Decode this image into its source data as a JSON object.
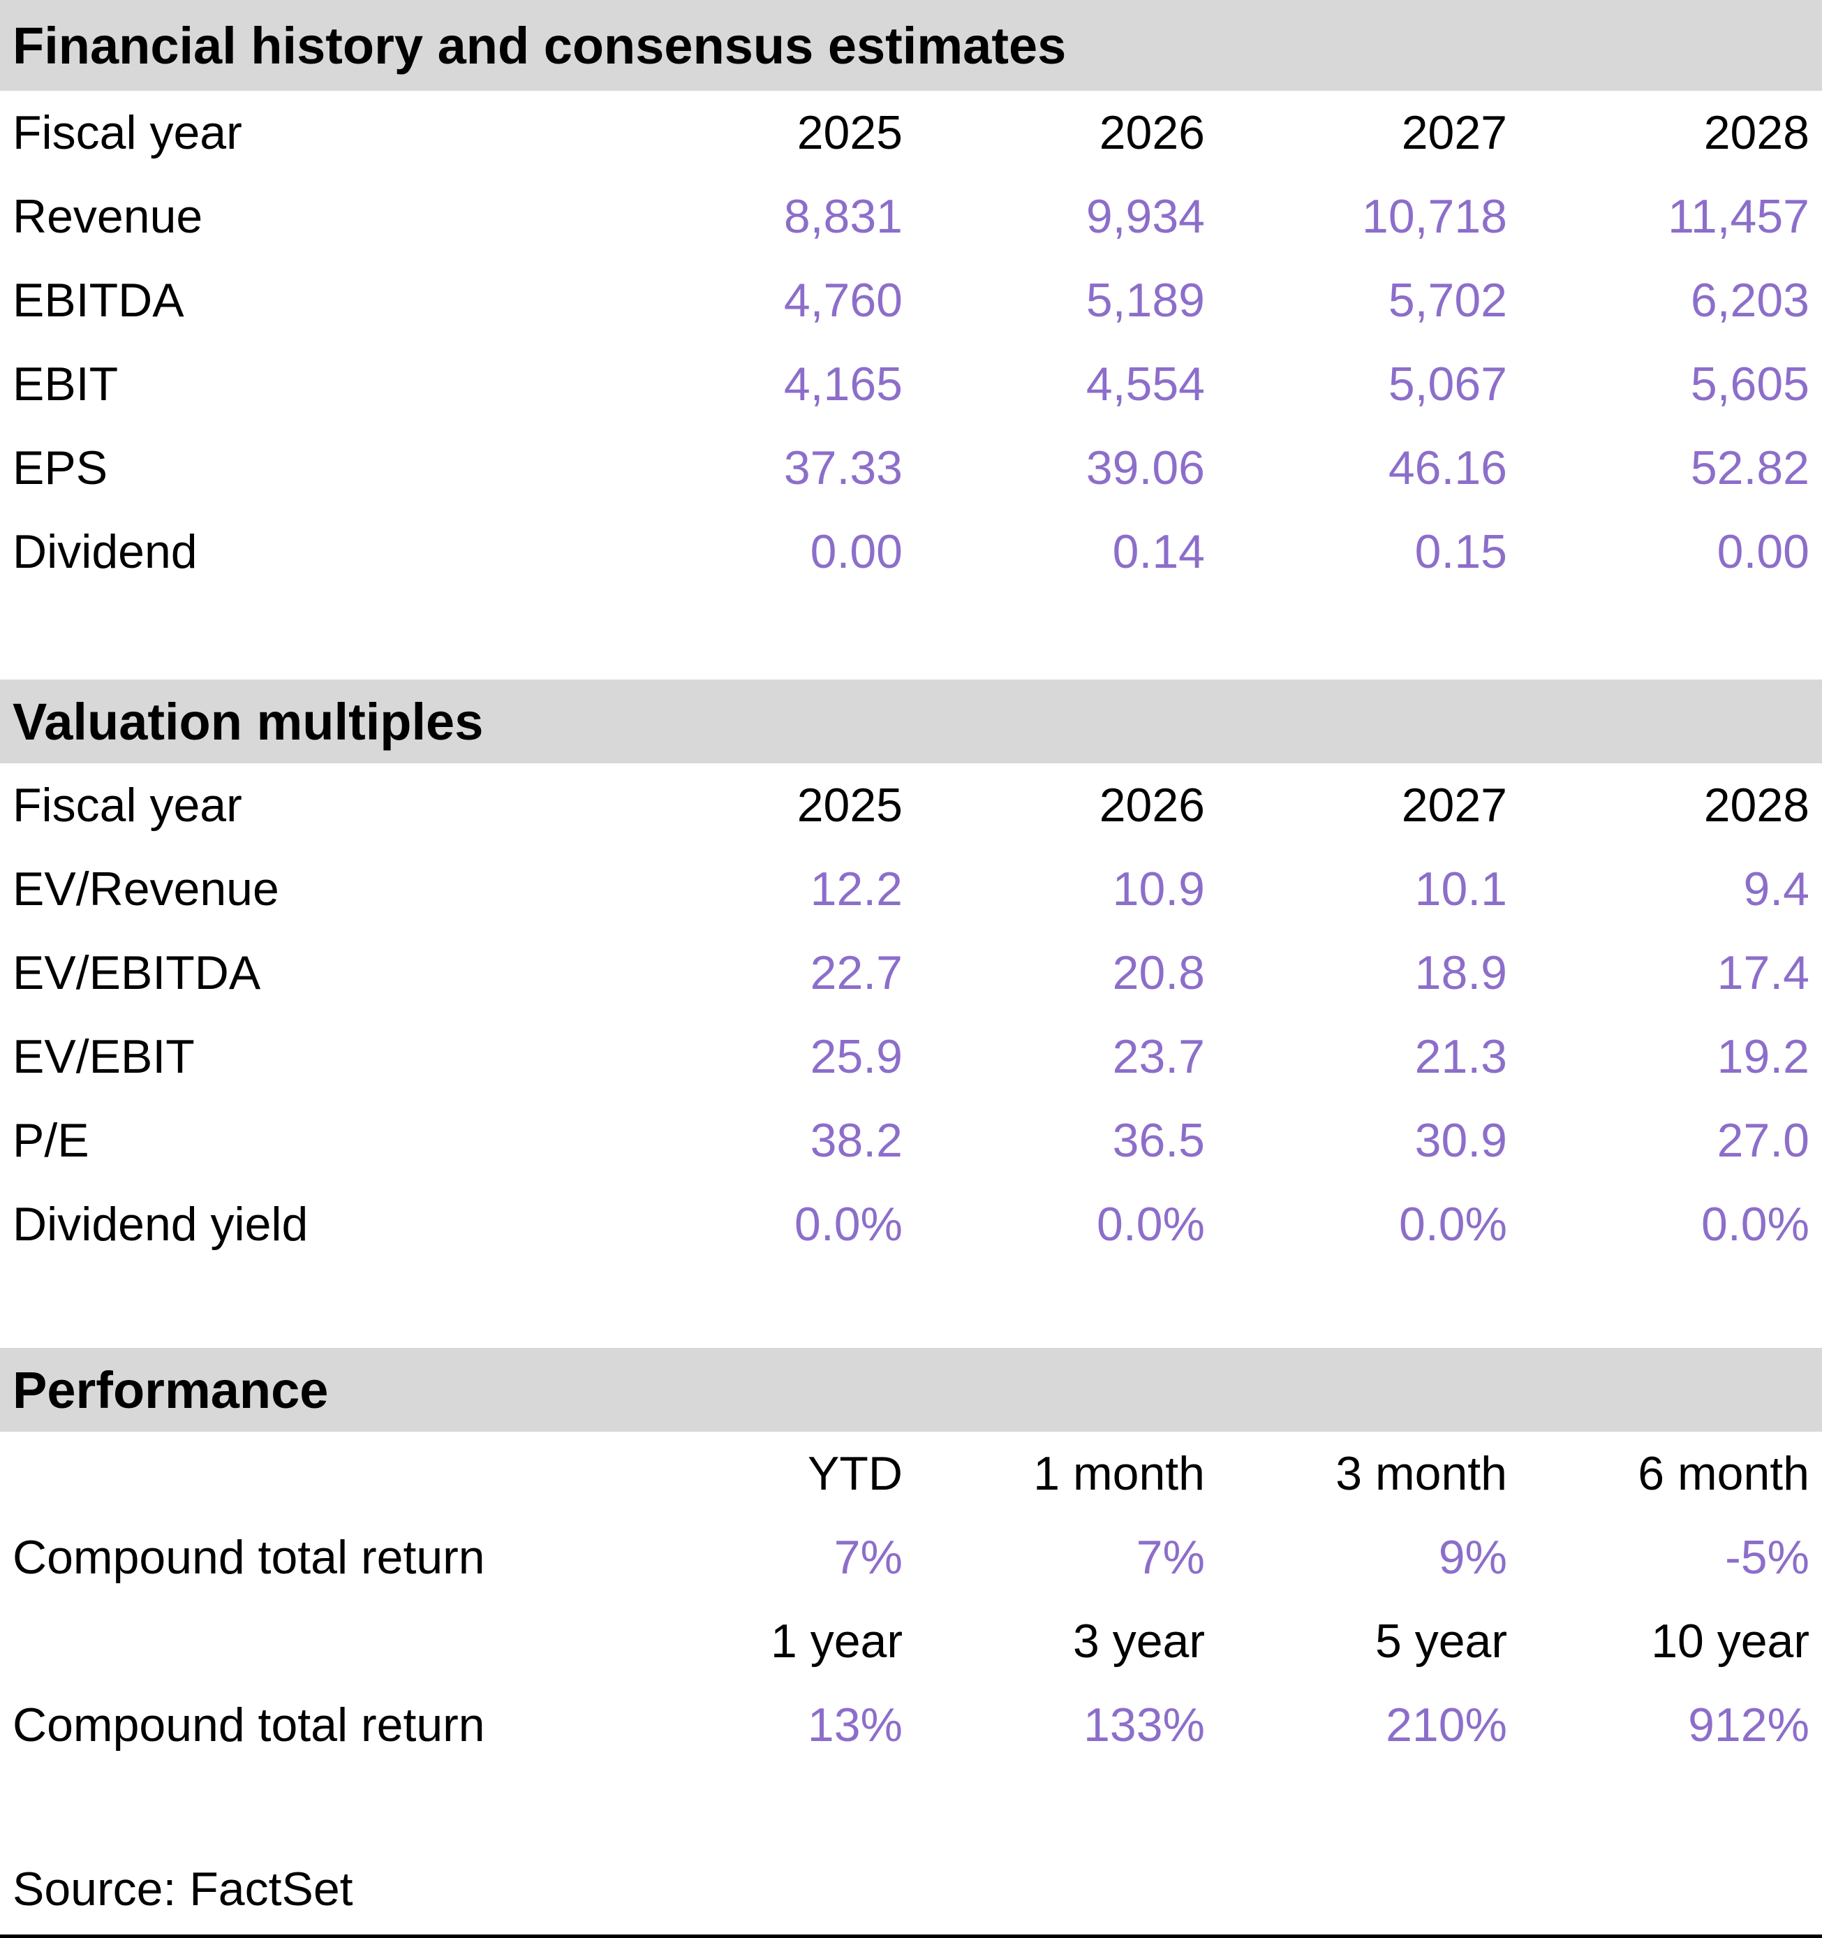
{
  "colors": {
    "accent_purple": "#8c6eca",
    "section_header_bg": "#d8d8d8",
    "text": "#000000"
  },
  "sections": {
    "financial": {
      "title": "Financial history and consensus estimates",
      "header_label": "Fiscal year",
      "years": [
        "2025",
        "2026",
        "2027",
        "2028"
      ],
      "rows": [
        {
          "label": "Revenue",
          "values": [
            "8,831",
            "9,934",
            "10,718",
            "11,457"
          ]
        },
        {
          "label": "EBITDA",
          "values": [
            "4,760",
            "5,189",
            "5,702",
            "6,203"
          ]
        },
        {
          "label": "EBIT",
          "values": [
            "4,165",
            "4,554",
            "5,067",
            "5,605"
          ]
        },
        {
          "label": "EPS",
          "values": [
            "37.33",
            "39.06",
            "46.16",
            "52.82"
          ]
        },
        {
          "label": "Dividend",
          "values": [
            "0.00",
            "0.14",
            "0.15",
            "0.00"
          ]
        }
      ]
    },
    "valuation": {
      "title": "Valuation multiples",
      "header_label": "Fiscal year",
      "years": [
        "2025",
        "2026",
        "2027",
        "2028"
      ],
      "rows": [
        {
          "label": "EV/Revenue",
          "values": [
            "12.2",
            "10.9",
            "10.1",
            "9.4"
          ]
        },
        {
          "label": "EV/EBITDA",
          "values": [
            "22.7",
            "20.8",
            "18.9",
            "17.4"
          ]
        },
        {
          "label": "EV/EBIT",
          "values": [
            "25.9",
            "23.7",
            "21.3",
            "19.2"
          ]
        },
        {
          "label": "P/E",
          "values": [
            "38.2",
            "36.5",
            "30.9",
            "27.0"
          ]
        },
        {
          "label": "Dividend yield",
          "values": [
            "0.0%",
            "0.0%",
            "0.0%",
            "0.0%"
          ]
        }
      ]
    },
    "performance": {
      "title": "Performance",
      "blocks": [
        {
          "periods": [
            "YTD",
            "1 month",
            "3 month",
            "6 month"
          ],
          "row_label": "Compound total return",
          "values": [
            "7%",
            "7%",
            "9%",
            "-5%"
          ]
        },
        {
          "periods": [
            "1 year",
            "3 year",
            "5 year",
            "10 year"
          ],
          "row_label": "Compound total return",
          "values": [
            "13%",
            "133%",
            "210%",
            "912%"
          ]
        }
      ]
    }
  },
  "source": "Source: FactSet"
}
